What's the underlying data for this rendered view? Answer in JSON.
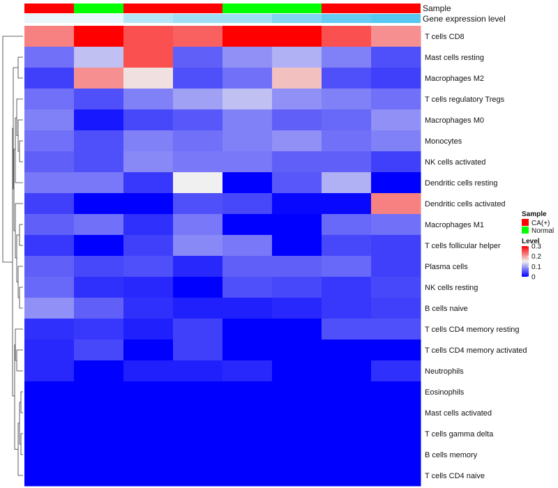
{
  "chart_data": {
    "type": "heatmap",
    "title": "",
    "xlabel": "",
    "ylabel": "",
    "annotations": {
      "sample_label": "Sample",
      "expression_label": "Gene expression level",
      "sample_groups": [
        "CA(+)",
        "Normal",
        "CA(+)",
        "CA(+)",
        "Normal",
        "Normal",
        "CA(+)",
        "CA(+)"
      ],
      "expression_levels": [
        0.0,
        0.0,
        0.35,
        0.5,
        0.5,
        0.7,
        0.9,
        1.0
      ]
    },
    "rows": [
      "T cells CD8",
      "Mast cells resting",
      "Macrophages M2",
      "T cells regulatory  Tregs",
      "Macrophages M0",
      "Monocytes",
      "NK cells activated",
      "Dendritic cells resting",
      "Dendritic cells activated",
      "Macrophages M1",
      "T cells follicular helper",
      "Plasma cells",
      "NK cells resting",
      "B cells naive",
      "T cells CD4 memory resting",
      "T cells CD4 memory activated",
      "Neutrophils",
      "Eosinophils",
      "Mast cells activated",
      "T cells gamma delta",
      "B cells memory",
      "T cells CD4 naive"
    ],
    "values": [
      [
        0.22,
        0.3,
        0.25,
        0.24,
        0.3,
        0.3,
        0.25,
        0.21
      ],
      [
        0.07,
        0.12,
        0.25,
        0.06,
        0.09,
        0.11,
        0.08,
        0.05
      ],
      [
        0.04,
        0.21,
        0.16,
        0.05,
        0.07,
        0.18,
        0.05,
        0.04
      ],
      [
        0.07,
        0.05,
        0.08,
        0.1,
        0.12,
        0.09,
        0.08,
        0.07
      ],
      [
        0.08,
        0.015,
        0.045,
        0.055,
        0.08,
        0.06,
        0.065,
        0.09
      ],
      [
        0.07,
        0.05,
        0.08,
        0.07,
        0.08,
        0.09,
        0.07,
        0.08
      ],
      [
        0.06,
        0.05,
        0.085,
        0.075,
        0.075,
        0.06,
        0.06,
        0.04
      ],
      [
        0.075,
        0.075,
        0.035,
        0.15,
        0.0,
        0.055,
        0.11,
        0.0
      ],
      [
        0.04,
        0.0,
        0.0,
        0.05,
        0.045,
        0.005,
        0.005,
        0.22
      ],
      [
        0.06,
        0.07,
        0.03,
        0.075,
        0.0,
        0.0,
        0.065,
        0.07
      ],
      [
        0.035,
        0.0,
        0.04,
        0.085,
        0.075,
        0.0,
        0.045,
        0.04
      ],
      [
        0.06,
        0.045,
        0.05,
        0.025,
        0.06,
        0.06,
        0.065,
        0.04
      ],
      [
        0.065,
        0.03,
        0.025,
        0.0,
        0.05,
        0.045,
        0.035,
        0.045
      ],
      [
        0.09,
        0.06,
        0.03,
        0.02,
        0.02,
        0.025,
        0.035,
        0.04
      ],
      [
        0.03,
        0.035,
        0.02,
        0.04,
        0.0,
        0.0,
        0.05,
        0.05
      ],
      [
        0.025,
        0.045,
        0.0,
        0.04,
        0.0,
        0.0,
        0.0,
        0.0
      ],
      [
        0.025,
        0.0,
        0.02,
        0.02,
        0.025,
        0.0,
        0.0,
        0.03
      ],
      [
        0.0,
        0.0,
        0.0,
        0.0,
        0.0,
        0.0,
        0.0,
        0.0
      ],
      [
        0.0,
        0.0,
        0.0,
        0.0,
        0.0,
        0.0,
        0.0,
        0.0
      ],
      [
        0.0,
        0.0,
        0.0,
        0.0,
        0.0,
        0.0,
        0.0,
        0.0
      ],
      [
        0.0,
        0.0,
        0.0,
        0.0,
        0.0,
        0.0,
        0.0,
        0.0
      ],
      [
        0.0,
        0.0,
        0.0,
        0.0,
        0.0,
        0.0,
        0.0,
        0.0
      ]
    ],
    "color_scale": {
      "low": "#0000ff",
      "mid": "#f0f0f0",
      "high": "#ff0000",
      "min": 0,
      "mid_value": 0.15,
      "max": 0.3
    },
    "legend": {
      "position": "right",
      "sample_title": "Sample",
      "sample_items": [
        {
          "label": "CA(+)",
          "color": "#ff0000"
        },
        {
          "label": "Normal",
          "color": "#00ff00"
        }
      ],
      "level_title": "Level",
      "level_ticks": [
        "0.3",
        "0.2",
        "0.1",
        "0"
      ],
      "level_tick_values": [
        0.3,
        0.2,
        0.1,
        0
      ]
    },
    "expression_color_low": "#e9f6fb",
    "expression_color_high": "#55c7f0",
    "row_dendrogram": true,
    "grid": false
  }
}
